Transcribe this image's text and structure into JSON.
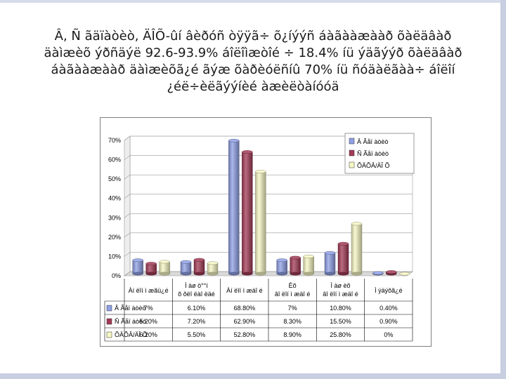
{
  "title_lines": [
    "Â, Ñ ãäïàòèò, ÄÎÕ-ûí âèðóñ òÿÿã÷ õ¿íýýñ áàãààæààð õàëäâàð",
    "äàìæèõ ýðñäýë 92.6-93.9% áîëîìæòîé ÷ 18.4% íü ýäãýýð õàëäâàð",
    "áàãààæààð äàìæèõã¿é ãýæ õàðèóëñíû 70% íü ñóäàëãàà÷ áîëîí",
    "¿éë÷èëãýýíèé àæèëòàíóóä"
  ],
  "chart_data": {
    "type": "bar",
    "style": "3d-cylinder",
    "categories": [
      [
        "Àí ëîí ì æãü¿é"
      ],
      [
        "Ì àø ö°°í",
        "õ õëî ëàî ëäé"
      ],
      [
        "Àí ëîí ì æäî é"
      ],
      [
        "Èõ",
        "âî ëîí ì æäî é"
      ],
      [
        "Ì àø èõ",
        "âî ëîí ì æäî é"
      ],
      [
        "Ì ýäýõã¿é"
      ]
    ],
    "series": [
      {
        "name": "Â Ãåï àòèò",
        "color": "#8fa0e6",
        "values": [
          7,
          6.1,
          68.8,
          7,
          10.8,
          0.4
        ],
        "labels": [
          "7%",
          "6.10%",
          "68.80%",
          "7%",
          "10.80%",
          "0.40%"
        ]
      },
      {
        "name": "Ñ Ãåï àòèò",
        "color": "#a33a56",
        "values": [
          5.2,
          7.2,
          62.9,
          8.3,
          15.5,
          0.9
        ],
        "labels": [
          "5.20%",
          "7.20%",
          "62.90%",
          "8.30%",
          "15.50%",
          "0.90%"
        ]
      },
      {
        "name": "ÕÄÕÂ/ÄÎ Õ",
        "color": "#f7f7c4",
        "values": [
          6.2,
          5.5,
          52.8,
          8.9,
          25.8,
          0
        ],
        "labels": [
          "6.20%",
          "5.50%",
          "52.80%",
          "8.90%",
          "25.80%",
          "0%"
        ]
      }
    ],
    "y_ticks": [
      "0%",
      "10%",
      "20%",
      "30%",
      "40%",
      "50%",
      "60%",
      "70%"
    ],
    "ylim": [
      0,
      70
    ],
    "grid": true,
    "legend_position": "top-right",
    "data_table": true
  }
}
